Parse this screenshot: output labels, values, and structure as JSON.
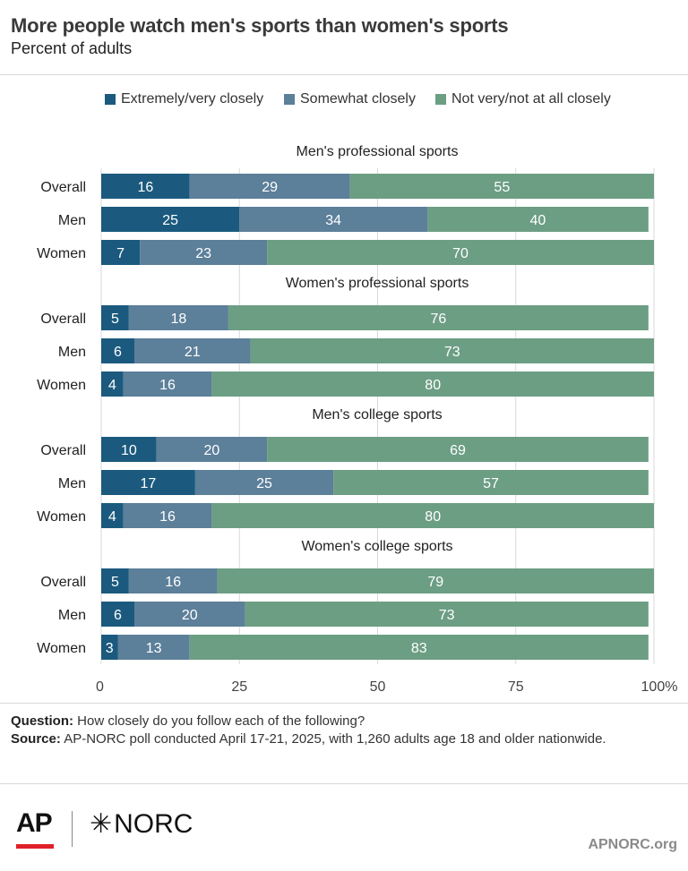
{
  "header": {
    "title": "More people watch men's sports than women's sports",
    "subtitle": "Percent of adults"
  },
  "colors": {
    "extremely": "#1b5a7e",
    "somewhat": "#5c7f9a",
    "not": "#6c9e84"
  },
  "chart_data": {
    "type": "bar",
    "orientation": "horizontal",
    "stacked": true,
    "xlim": [
      0,
      100
    ],
    "x_ticks": [
      "0",
      "25",
      "50",
      "75",
      "100%"
    ],
    "legend_position": "top",
    "series_names": [
      "Extremely/very closely",
      "Somewhat closely",
      "Not very/not at all closely"
    ],
    "groups": [
      {
        "title": "Men's professional sports",
        "rows": [
          {
            "label": "Overall",
            "values": [
              16,
              29,
              55
            ]
          },
          {
            "label": "Men",
            "values": [
              25,
              34,
              40
            ]
          },
          {
            "label": "Women",
            "values": [
              7,
              23,
              70
            ]
          }
        ]
      },
      {
        "title": "Women's professional sports",
        "rows": [
          {
            "label": "Overall",
            "values": [
              5,
              18,
              76
            ]
          },
          {
            "label": "Men",
            "values": [
              6,
              21,
              73
            ]
          },
          {
            "label": "Women",
            "values": [
              4,
              16,
              80
            ]
          }
        ]
      },
      {
        "title": "Men's college sports",
        "rows": [
          {
            "label": "Overall",
            "values": [
              10,
              20,
              69
            ]
          },
          {
            "label": "Men",
            "values": [
              17,
              25,
              57
            ]
          },
          {
            "label": "Women",
            "values": [
              4,
              16,
              80
            ]
          }
        ]
      },
      {
        "title": "Women's college sports",
        "rows": [
          {
            "label": "Overall",
            "values": [
              5,
              16,
              79
            ]
          },
          {
            "label": "Men",
            "values": [
              6,
              20,
              73
            ]
          },
          {
            "label": "Women",
            "values": [
              3,
              13,
              83
            ]
          }
        ]
      }
    ]
  },
  "footer": {
    "question_label": "Question:",
    "question_text": " How closely do you follow each of the following?",
    "source_label": "Source:",
    "source_text": " AP-NORC poll conducted April 17-21, 2025, with 1,260 adults age 18 and older nationwide.",
    "logo_ap": "AP",
    "logo_norc": "NORC",
    "site": "APNORC.org"
  }
}
